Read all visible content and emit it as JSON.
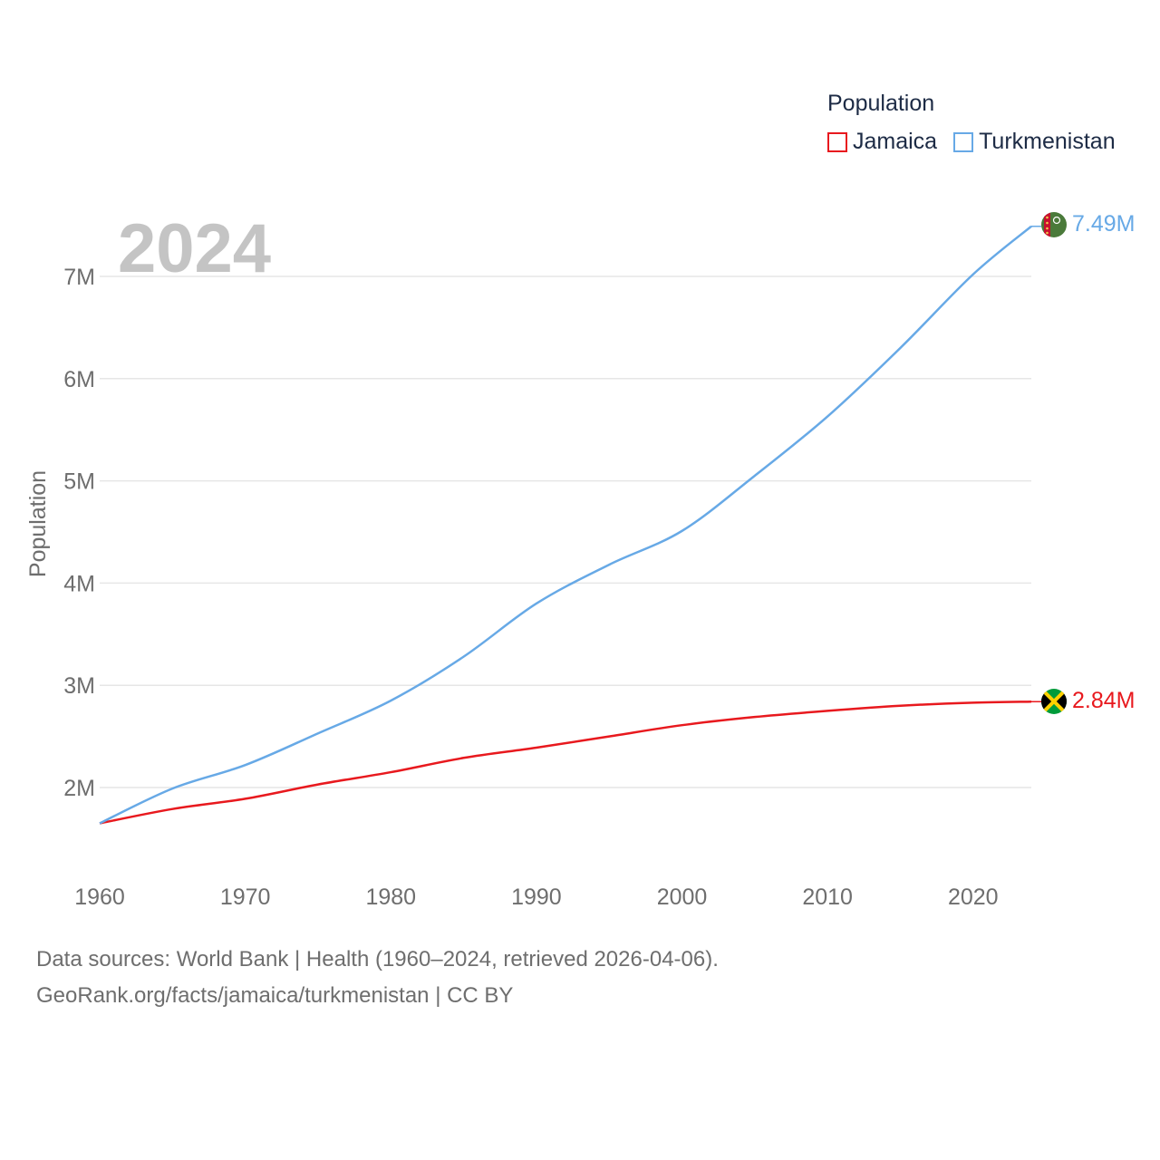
{
  "chart_data": {
    "type": "line",
    "title": "Population",
    "year_label": "2024",
    "xlabel": "",
    "ylabel": "Population",
    "xlim": [
      1960,
      2024
    ],
    "ylim": [
      1300000,
      7800000
    ],
    "x_ticks": [
      "1960",
      "1970",
      "1980",
      "1990",
      "2000",
      "2010",
      "2020"
    ],
    "y_ticks": [
      {
        "value": 2000000,
        "label": "2M"
      },
      {
        "value": 3000000,
        "label": "3M"
      },
      {
        "value": 4000000,
        "label": "4M"
      },
      {
        "value": 5000000,
        "label": "5M"
      },
      {
        "value": 6000000,
        "label": "6M"
      },
      {
        "value": 7000000,
        "label": "7M"
      }
    ],
    "grid": true,
    "legend_position": "top-right",
    "x": [
      1960,
      1965,
      1970,
      1975,
      1980,
      1985,
      1990,
      1995,
      2000,
      2005,
      2010,
      2015,
      2020,
      2024
    ],
    "series": [
      {
        "name": "Jamaica",
        "color": "#e8191e",
        "end_label": "2.84M",
        "values": [
          1650000,
          1790000,
          1890000,
          2030000,
          2150000,
          2290000,
          2390000,
          2500000,
          2610000,
          2690000,
          2750000,
          2800000,
          2830000,
          2840000
        ]
      },
      {
        "name": "Turkmenistan",
        "color": "#67a9e6",
        "end_label": "7.49M",
        "values": [
          1650000,
          1990000,
          2220000,
          2530000,
          2850000,
          3280000,
          3800000,
          4180000,
          4510000,
          5050000,
          5630000,
          6300000,
          7020000,
          7490000
        ]
      }
    ]
  },
  "source": {
    "line1": "Data sources: World Bank | Health (1960–2024, retrieved 2026-04-06).",
    "line2": "GeoRank.org/facts/jamaica/turkmenistan | CC BY"
  }
}
